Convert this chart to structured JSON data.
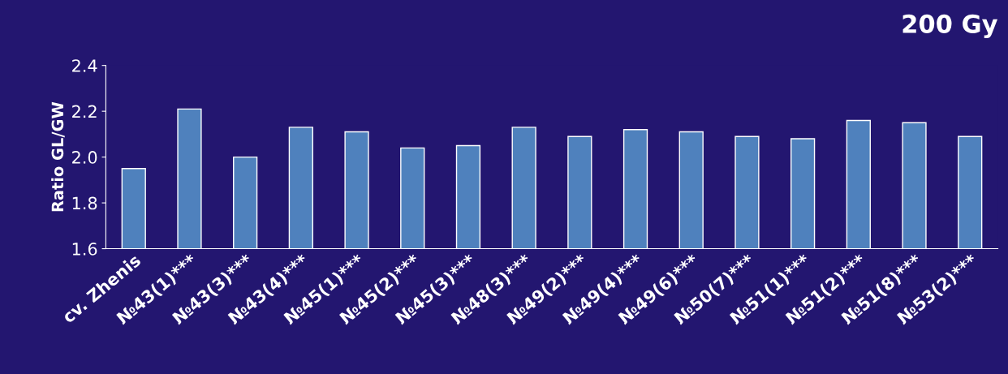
{
  "chart_data": {
    "type": "bar",
    "title": "200 Gy",
    "ylabel": "Ratio GL/GW",
    "categories": [
      "cv. Zhenis",
      "№43(1)***",
      "№43(3)***",
      "№43(4)***",
      "№45(1)***",
      "№45(2)***",
      "№45(3)***",
      "№48(3)***",
      "№49(2)***",
      "№49(4)***",
      "№49(6)***",
      "№50(7)***",
      "№51(1)***",
      "№51(2)***",
      "№51(8)***",
      "№53(2)***"
    ],
    "values": [
      1.95,
      2.21,
      2.0,
      2.13,
      2.11,
      2.04,
      2.05,
      2.13,
      2.09,
      2.12,
      2.11,
      2.09,
      2.08,
      2.16,
      2.15,
      2.09
    ],
    "color": "#4f81bd",
    "ylim": [
      1.6,
      2.4
    ],
    "yticks": [
      {
        "value": 1.6,
        "label": "1.6"
      },
      {
        "value": 1.8,
        "label": "1.8"
      },
      {
        "value": 2.0,
        "label": "2.0"
      },
      {
        "value": 2.2,
        "label": "2.2"
      },
      {
        "value": 2.4,
        "label": "2.4"
      }
    ],
    "grid": false,
    "legend": false
  }
}
